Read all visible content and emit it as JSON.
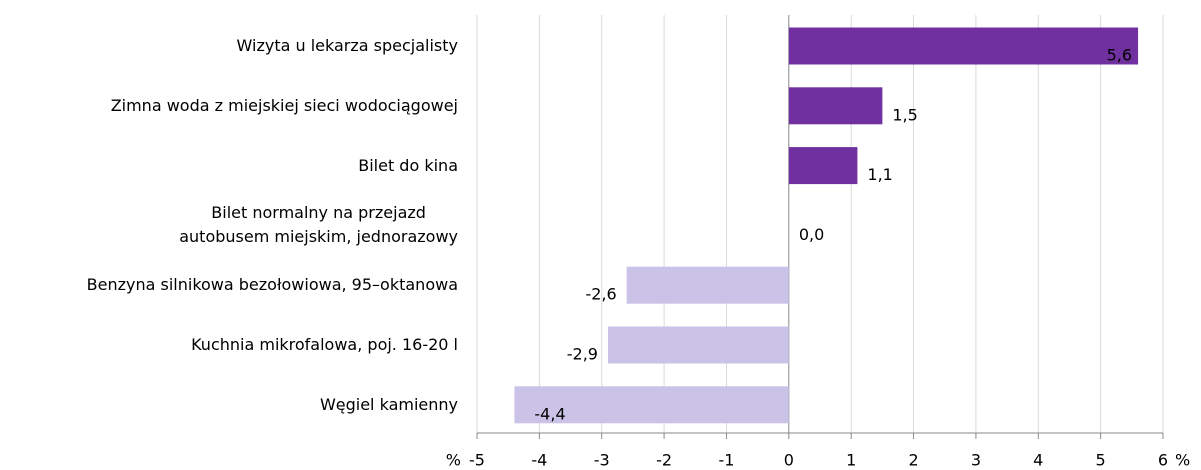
{
  "chart_data": {
    "type": "hbar",
    "categories": [
      "Wizyta u lekarza specjalisty",
      "Zimna woda z miejskiej sieci wodociągowej",
      "Bilet do kina",
      "Bilet normalny na przejazd\nautobusem  miejskim,  jednorazowy",
      "Benzyna silnikowa bezołowiowa, 95–oktanowa",
      "Kuchnia mikrofalowa, poj. 16-20 l",
      "Węgiel kamienny"
    ],
    "values": [
      5.6,
      1.5,
      1.1,
      0.0,
      -2.6,
      -2.9,
      -4.4
    ],
    "value_labels": [
      "5,6",
      "1,5",
      "1,1",
      "0,0",
      "-2,6",
      "-2,9",
      "-4,4"
    ],
    "positive_color": "#7030a0",
    "negative_color": "#cbc3e7",
    "xlabel": "%",
    "xlim": [
      -5,
      6
    ],
    "xticks": [
      -5,
      -4,
      -3,
      -2,
      -1,
      0,
      1,
      2,
      3,
      4,
      5,
      6
    ],
    "grid": true
  }
}
